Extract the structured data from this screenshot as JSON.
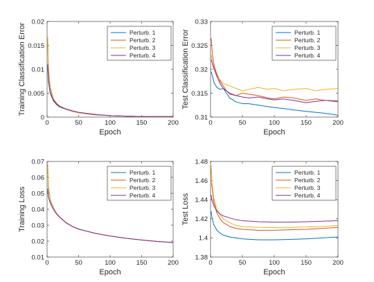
{
  "colors": [
    "#0072BD",
    "#D95319",
    "#EDB120",
    "#7E2F8E"
  ],
  "chart_data": [
    {
      "type": "line",
      "xlabel": "Epoch",
      "ylabel": "Training Classification Error",
      "xlim": [
        0,
        200
      ],
      "ylim": [
        0,
        0.02
      ],
      "xticks": [
        0,
        50,
        100,
        150,
        200
      ],
      "xtick_labels": [
        "0",
        "50",
        "100",
        "150",
        "200"
      ],
      "yticks": [
        0,
        0.005,
        0.01,
        0.015,
        0.02
      ],
      "ytick_labels": [
        "0",
        "0.005",
        "0.01",
        "0.015",
        "0.02"
      ],
      "legend_position": "top-right",
      "grid": false,
      "x": [
        1,
        2,
        5,
        10,
        15,
        20,
        30,
        40,
        50,
        75,
        100,
        125,
        150,
        175,
        200
      ],
      "series": [
        {
          "name": "Perturb. 1",
          "values": [
            0.0108,
            0.0075,
            0.005,
            0.0034,
            0.0026,
            0.0021,
            0.0016,
            0.0012,
            0.0009,
            0.0005,
            0.0003,
            0.0002,
            0.0001,
            0.0001,
            0.0001
          ]
        },
        {
          "name": "Perturb. 2",
          "values": [
            0.0165,
            0.0105,
            0.0062,
            0.0038,
            0.0029,
            0.0023,
            0.0017,
            0.0013,
            0.001,
            0.0006,
            0.0003,
            0.0002,
            0.0001,
            0.0001,
            0.0001
          ]
        },
        {
          "name": "Perturb. 3",
          "values": [
            0.0168,
            0.0102,
            0.006,
            0.0036,
            0.0027,
            0.0022,
            0.0016,
            0.0012,
            0.0009,
            0.0005,
            0.0003,
            0.0002,
            0.0001,
            0.0001,
            0.0001
          ]
        },
        {
          "name": "Perturb. 4",
          "values": [
            0.011,
            0.008,
            0.0052,
            0.0035,
            0.0027,
            0.0022,
            0.0017,
            0.0013,
            0.001,
            0.0005,
            0.0003,
            0.0002,
            0.0001,
            0.0001,
            0.0001
          ]
        }
      ]
    },
    {
      "type": "line",
      "xlabel": "Epoch",
      "ylabel": "Test Classification Error",
      "xlim": [
        0,
        200
      ],
      "ylim": [
        0.31,
        0.33
      ],
      "xticks": [
        0,
        50,
        100,
        150,
        200
      ],
      "xtick_labels": [
        "0",
        "50",
        "100",
        "150",
        "200"
      ],
      "yticks": [
        0.31,
        0.315,
        0.32,
        0.325,
        0.33
      ],
      "ytick_labels": [
        "0.31",
        "0.315",
        "0.32",
        "0.325",
        "0.33"
      ],
      "legend_position": "top-right",
      "grid": false,
      "x": [
        1,
        3,
        6,
        10,
        15,
        20,
        25,
        30,
        40,
        50,
        60,
        75,
        90,
        100,
        115,
        130,
        150,
        165,
        180,
        200
      ],
      "series": [
        {
          "name": "Perturb. 1",
          "values": [
            0.3195,
            0.3185,
            0.317,
            0.3162,
            0.3158,
            0.316,
            0.315,
            0.314,
            0.3132,
            0.3128,
            0.3128,
            0.3125,
            0.3122,
            0.312,
            0.3118,
            0.3115,
            0.3112,
            0.311,
            0.3108,
            0.3104
          ]
        },
        {
          "name": "Perturb. 2",
          "values": [
            0.3265,
            0.323,
            0.3205,
            0.319,
            0.3175,
            0.3165,
            0.3155,
            0.3148,
            0.3145,
            0.315,
            0.3148,
            0.3145,
            0.314,
            0.3138,
            0.3142,
            0.314,
            0.3135,
            0.3138,
            0.3135,
            0.3134
          ]
        },
        {
          "name": "Perturb. 3",
          "values": [
            0.323,
            0.321,
            0.3198,
            0.3185,
            0.3178,
            0.317,
            0.3168,
            0.3165,
            0.316,
            0.3155,
            0.3158,
            0.3162,
            0.3158,
            0.316,
            0.3155,
            0.3158,
            0.316,
            0.3155,
            0.3158,
            0.316
          ]
        },
        {
          "name": "Perturb. 4",
          "values": [
            0.322,
            0.3212,
            0.32,
            0.3185,
            0.317,
            0.316,
            0.3155,
            0.315,
            0.3145,
            0.3142,
            0.314,
            0.3142,
            0.3138,
            0.3136,
            0.3138,
            0.3135,
            0.313,
            0.3133,
            0.3135,
            0.3132
          ]
        }
      ]
    },
    {
      "type": "line",
      "xlabel": "Epoch",
      "ylabel": "Training Loss",
      "xlim": [
        0,
        200
      ],
      "ylim": [
        0.01,
        0.07
      ],
      "xticks": [
        0,
        50,
        100,
        150,
        200
      ],
      "xtick_labels": [
        "0",
        "50",
        "100",
        "150",
        "200"
      ],
      "yticks": [
        0.01,
        0.02,
        0.03,
        0.04,
        0.05,
        0.06,
        0.07
      ],
      "ytick_labels": [
        "0.01",
        "0.02",
        "0.03",
        "0.04",
        "0.05",
        "0.06",
        "0.07"
      ],
      "legend_position": "top-right",
      "grid": false,
      "x": [
        1,
        2,
        5,
        10,
        15,
        20,
        30,
        40,
        50,
        75,
        100,
        125,
        150,
        175,
        200
      ],
      "series": [
        {
          "name": "Perturb. 1",
          "values": [
            0.053,
            0.048,
            0.044,
            0.04,
            0.037,
            0.035,
            0.0315,
            0.0292,
            0.0275,
            0.025,
            0.0232,
            0.0218,
            0.0207,
            0.0198,
            0.019
          ]
        },
        {
          "name": "Perturb. 2",
          "values": [
            0.068,
            0.055,
            0.046,
            0.041,
            0.0375,
            0.0352,
            0.0317,
            0.0293,
            0.0276,
            0.025,
            0.0232,
            0.0218,
            0.0207,
            0.0198,
            0.019
          ]
        },
        {
          "name": "Perturb. 3",
          "values": [
            0.067,
            0.054,
            0.0455,
            0.0408,
            0.0373,
            0.0351,
            0.0316,
            0.0293,
            0.0275,
            0.025,
            0.0232,
            0.0218,
            0.0207,
            0.0198,
            0.019
          ]
        },
        {
          "name": "Perturb. 4",
          "values": [
            0.052,
            0.048,
            0.044,
            0.04,
            0.037,
            0.035,
            0.0315,
            0.0292,
            0.0275,
            0.025,
            0.0232,
            0.0218,
            0.0207,
            0.0198,
            0.0192
          ]
        }
      ]
    },
    {
      "type": "line",
      "xlabel": "Epoch",
      "ylabel": "Test Loss",
      "xlim": [
        0,
        200
      ],
      "ylim": [
        1.38,
        1.48
      ],
      "xticks": [
        0,
        50,
        100,
        150,
        200
      ],
      "xtick_labels": [
        "0",
        "50",
        "100",
        "150",
        "200"
      ],
      "yticks": [
        1.38,
        1.4,
        1.42,
        1.44,
        1.46,
        1.48
      ],
      "ytick_labels": [
        "1.38",
        "1.4",
        "1.42",
        "1.44",
        "1.46",
        "1.48"
      ],
      "legend_position": "top-right",
      "grid": false,
      "x": [
        1,
        2,
        5,
        10,
        15,
        20,
        30,
        40,
        50,
        75,
        100,
        125,
        150,
        175,
        200
      ],
      "series": [
        {
          "name": "Perturb. 1",
          "values": [
            1.428,
            1.422,
            1.414,
            1.408,
            1.405,
            1.403,
            1.401,
            1.4,
            1.399,
            1.398,
            1.398,
            1.3985,
            1.399,
            1.4,
            1.401
          ]
        },
        {
          "name": "Perturb. 2",
          "values": [
            1.472,
            1.455,
            1.438,
            1.426,
            1.42,
            1.416,
            1.412,
            1.41,
            1.409,
            1.408,
            1.408,
            1.4085,
            1.409,
            1.41,
            1.411
          ]
        },
        {
          "name": "Perturb. 3",
          "values": [
            1.476,
            1.46,
            1.442,
            1.43,
            1.424,
            1.42,
            1.416,
            1.413,
            1.412,
            1.411,
            1.4108,
            1.411,
            1.4115,
            1.412,
            1.413
          ]
        },
        {
          "name": "Perturb. 4",
          "values": [
            1.445,
            1.44,
            1.434,
            1.428,
            1.425,
            1.423,
            1.421,
            1.419,
            1.418,
            1.417,
            1.4165,
            1.4165,
            1.417,
            1.4175,
            1.418
          ]
        }
      ]
    }
  ]
}
